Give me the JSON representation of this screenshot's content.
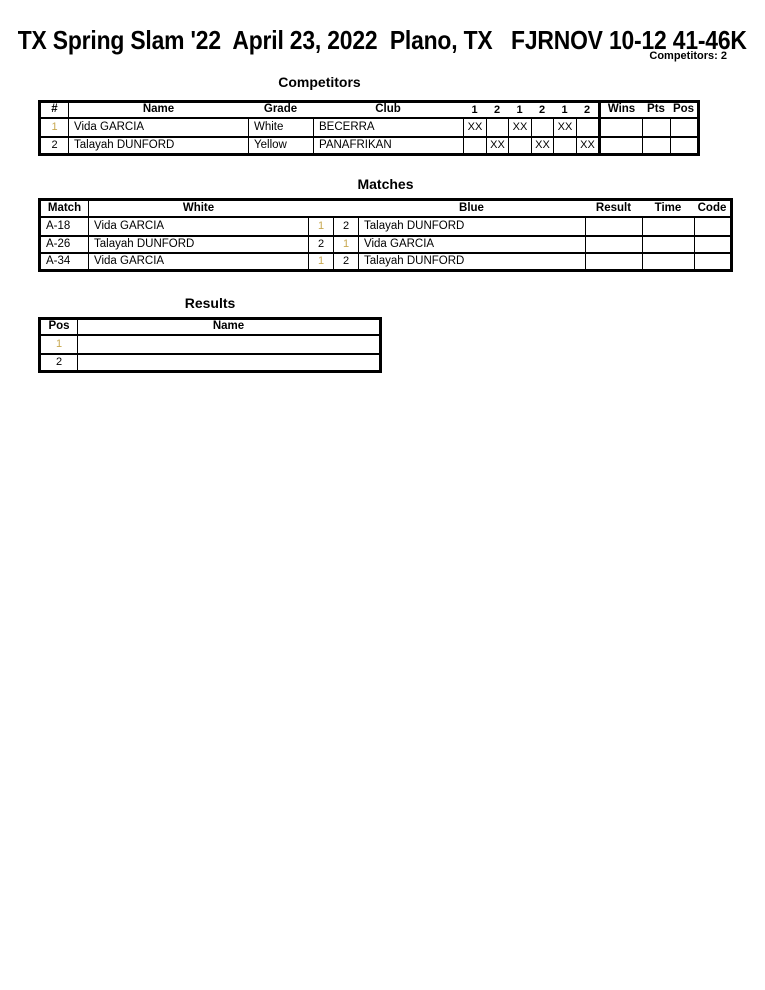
{
  "colors": {
    "gold_accent": "#C8A850"
  },
  "header": {
    "title": "TX Spring Slam '22  April 23, 2022  Plano, TX   FJRNOV 10-12 41-46K",
    "competitors_count": "Competitors: 2"
  },
  "competitors": {
    "heading": "Competitors",
    "columns": [
      "#",
      "Name",
      "Grade",
      "Club",
      "1",
      "2",
      "1",
      "2",
      "1",
      "2",
      "Wins",
      "Pts",
      "Pos"
    ],
    "rows": [
      {
        "num": "1",
        "name": "Vida GARCIA",
        "grade": "White",
        "club": "BECERRA",
        "marks": [
          "XX",
          "",
          "XX",
          "",
          "XX",
          ""
        ],
        "wins": "",
        "pts": "",
        "pos": ""
      },
      {
        "num": "2",
        "name": "Talayah DUNFORD",
        "grade": "Yellow",
        "club": "PANAFRIKAN",
        "marks": [
          "",
          "XX",
          "",
          "XX",
          "",
          "XX"
        ],
        "wins": "",
        "pts": "",
        "pos": ""
      }
    ]
  },
  "matches": {
    "heading": "Matches",
    "columns": {
      "match": "Match",
      "white": "White",
      "blue": "Blue",
      "result": "Result",
      "time": "Time",
      "code": "Code"
    },
    "rows": [
      {
        "match": "A-18",
        "white": "Vida GARCIA",
        "white_num": "1",
        "blue_num": "2",
        "blue": "Talayah DUNFORD",
        "result": "",
        "time": "",
        "code": ""
      },
      {
        "match": "A-26",
        "white": "Talayah DUNFORD",
        "white_num": "2",
        "blue_num": "1",
        "blue": "Vida GARCIA",
        "result": "",
        "time": "",
        "code": ""
      },
      {
        "match": "A-34",
        "white": "Vida GARCIA",
        "white_num": "1",
        "blue_num": "2",
        "blue": "Talayah DUNFORD",
        "result": "",
        "time": "",
        "code": ""
      }
    ]
  },
  "results": {
    "heading": "Results",
    "columns": {
      "pos": "Pos",
      "name": "Name"
    },
    "rows": [
      {
        "pos": "1",
        "name": ""
      },
      {
        "pos": "2",
        "name": ""
      }
    ]
  }
}
